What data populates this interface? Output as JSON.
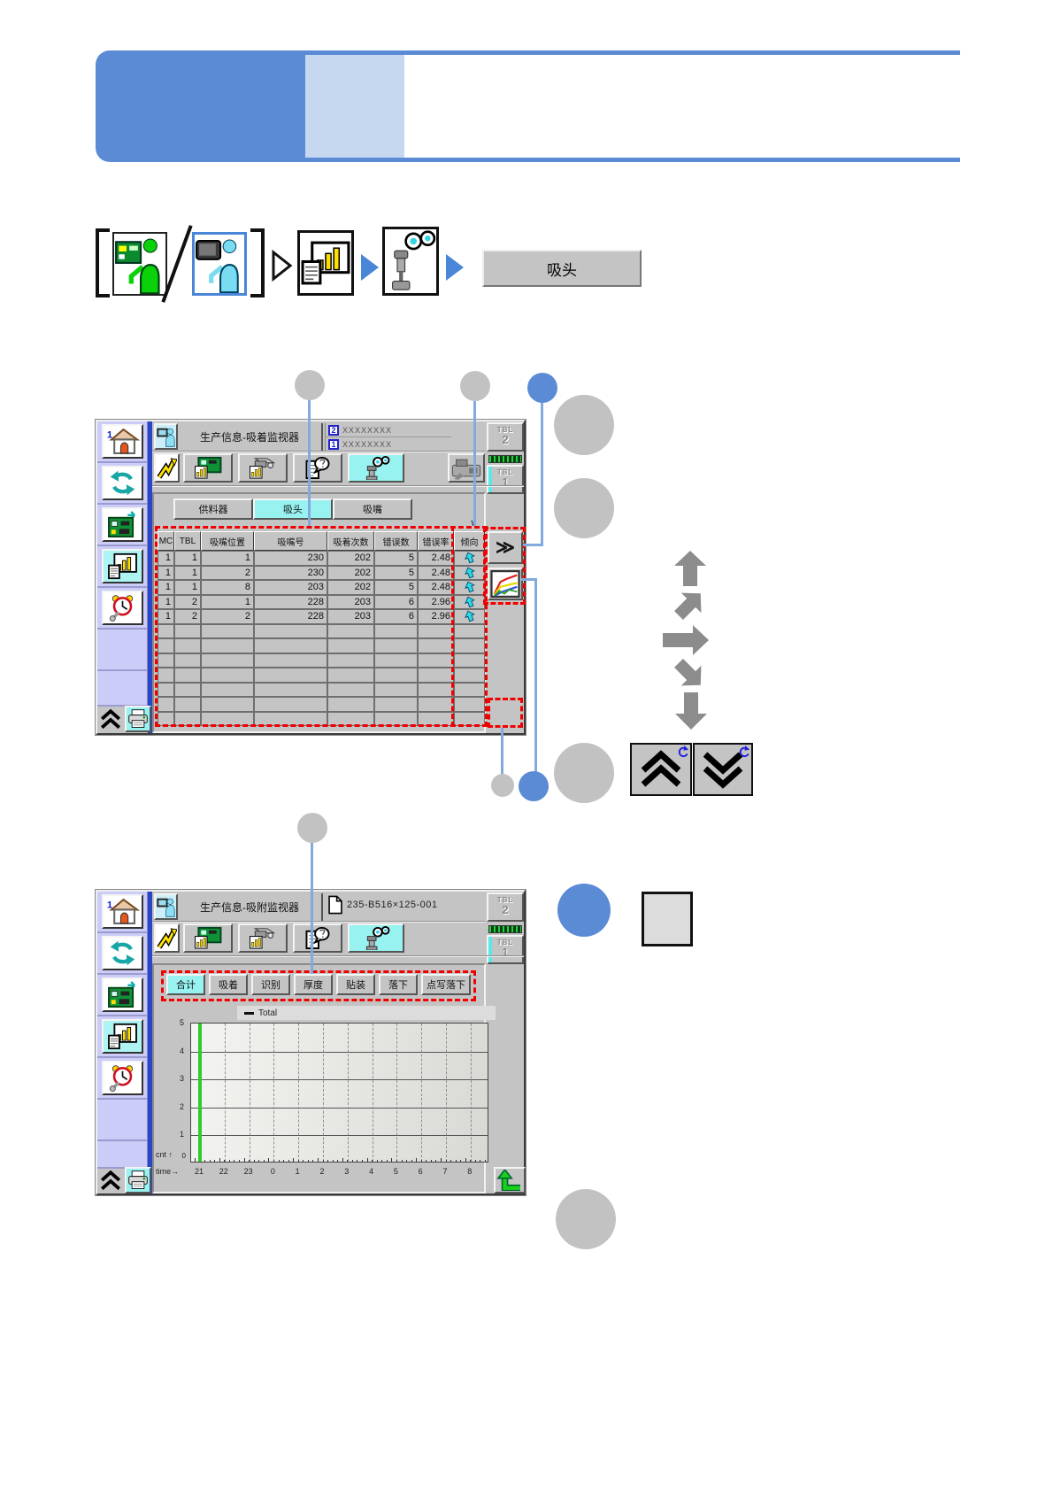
{
  "banner": {
    "accent_dark": "#5b8bd5",
    "accent_light": "#c5d8f0"
  },
  "nav": {
    "separator": "/",
    "target_button": "吸头",
    "icons": [
      "operator-green-icon",
      "operator-blue-icon",
      "report-chart-icon",
      "head-binoculars-icon"
    ]
  },
  "chrome": {
    "sidebar_icons": [
      "home-icon",
      "cycle-arrows-icon",
      "circuit-board-icon",
      "report-chart-icon",
      "clock-tools-icon"
    ],
    "sidebar_active_index": 3,
    "toolbar_icons_screen1": [
      "trend-arrow-icon",
      "board-monitor-icon",
      "feeder-monitor-icon",
      "inquiry-icon",
      "pickup-monitor-icon",
      "machine-icon"
    ],
    "toolbar_icons_screen2": [
      "trend-arrow-icon",
      "board-monitor-icon",
      "feeder-monitor-icon",
      "inquiry-icon",
      "pickup-monitor-icon"
    ],
    "active_toolbar_icon": "pickup-monitor-icon"
  },
  "screen1": {
    "title": "生产信息-吸着监视器",
    "fields": [
      {
        "num": "2",
        "value": "XXXXXXXX"
      },
      {
        "num": "1",
        "value": "XXXXXXXX"
      }
    ],
    "tbl_buttons": [
      {
        "line1": "TBL",
        "line2": "2"
      },
      {
        "line1": "TBL",
        "line2": "1"
      }
    ],
    "tabs": [
      {
        "label": "供料器",
        "active": false
      },
      {
        "label": "吸头",
        "active": true
      },
      {
        "label": "吸嘴",
        "active": false
      }
    ],
    "table": {
      "headers": [
        "MC",
        "TBL",
        "吸嘴位置",
        "吸嘴号",
        "吸着次数",
        "错误数",
        "错误率",
        "倾向"
      ],
      "rows": [
        [
          "1",
          "1",
          "1",
          "230",
          "202",
          "5",
          "2.48"
        ],
        [
          "1",
          "1",
          "2",
          "230",
          "202",
          "5",
          "2.48"
        ],
        [
          "1",
          "1",
          "8",
          "203",
          "202",
          "5",
          "2.48"
        ],
        [
          "1",
          "2",
          "1",
          "228",
          "203",
          "6",
          "2.96"
        ],
        [
          "1",
          "2",
          "2",
          "228",
          "203",
          "6",
          "2.96"
        ]
      ],
      "empty_rows": 7,
      "trend_arrow_color": "#2adbe8"
    },
    "expand_button": "≫",
    "sort_marker": "∨"
  },
  "screen2": {
    "title": "生产信息-吸附监视器",
    "board_name": "235-B516×125-001",
    "tbl_buttons": [
      {
        "line1": "TBL",
        "line2": "2"
      },
      {
        "line1": "TBL",
        "line2": "1"
      }
    ],
    "tabs": [
      {
        "label": "合计",
        "active": true
      },
      {
        "label": "吸着",
        "active": false
      },
      {
        "label": "识别",
        "active": false
      },
      {
        "label": "厚度",
        "active": false
      },
      {
        "label": "贴装",
        "active": false
      },
      {
        "label": "落下",
        "active": false
      },
      {
        "label": "点写落下",
        "active": false
      }
    ],
    "y_axis_label": "cnt ↑",
    "x_axis_label": "time→",
    "chart_data": {
      "type": "line",
      "title": "",
      "legend": [
        "Total"
      ],
      "legend_position": "top-left",
      "ylabel": "cnt",
      "xlabel": "time",
      "y_ticks": [
        "0",
        "1",
        "2",
        "3",
        "4",
        "5"
      ],
      "x_ticks": [
        "21",
        "22",
        "23",
        "0",
        "1",
        "2",
        "3",
        "4",
        "5",
        "6",
        "7",
        "8"
      ],
      "ylim": [
        0,
        5
      ],
      "series": [
        {
          "name": "Total",
          "values": []
        }
      ],
      "cursor_at_tick": "21",
      "cursor_color": "#2ecc2e",
      "grid": {
        "horizontal": "solid",
        "vertical": "dashed"
      }
    }
  }
}
